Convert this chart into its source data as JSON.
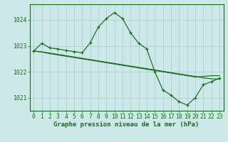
{
  "title": "Graphe pression niveau de la mer (hPa)",
  "hours": [
    0,
    1,
    2,
    3,
    4,
    5,
    6,
    7,
    8,
    9,
    10,
    11,
    12,
    13,
    14,
    15,
    16,
    17,
    18,
    19,
    20,
    21,
    22,
    23
  ],
  "line_main": [
    1022.8,
    1023.1,
    1022.92,
    1022.88,
    1022.82,
    1022.78,
    1022.73,
    1023.12,
    1023.72,
    1024.05,
    1024.28,
    1024.05,
    1023.5,
    1023.1,
    1022.88,
    1022.0,
    1021.3,
    1021.1,
    1020.85,
    1020.72,
    1021.0,
    1021.5,
    1021.62,
    1021.75
  ],
  "line_flat1": [
    1022.8,
    1022.77,
    1022.72,
    1022.67,
    1022.62,
    1022.57,
    1022.52,
    1022.47,
    1022.42,
    1022.37,
    1022.32,
    1022.27,
    1022.22,
    1022.17,
    1022.12,
    1022.07,
    1022.02,
    1021.97,
    1021.92,
    1021.87,
    1021.82,
    1021.77,
    1021.73,
    1021.72
  ],
  "line_flat2": [
    1022.8,
    1022.76,
    1022.7,
    1022.65,
    1022.6,
    1022.55,
    1022.5,
    1022.45,
    1022.4,
    1022.35,
    1022.3,
    1022.25,
    1022.2,
    1022.15,
    1022.1,
    1022.05,
    1022.0,
    1021.95,
    1021.9,
    1021.85,
    1021.8,
    1021.82,
    1021.85,
    1021.85
  ],
  "ylim": [
    1020.5,
    1024.6
  ],
  "yticks": [
    1021,
    1022,
    1023,
    1024
  ],
  "line_color": "#1a6b1a",
  "bg_color": "#cce8e8",
  "grid_color": "#a8cccc",
  "title_color": "#1a6b1a",
  "title_fontsize": 6.5,
  "tick_fontsize": 5.8
}
